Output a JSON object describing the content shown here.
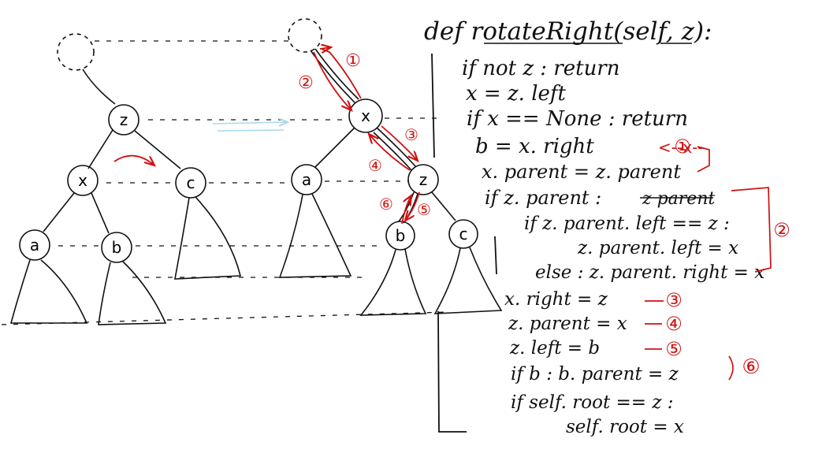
{
  "tree_left": {
    "z": "z",
    "x": "x",
    "c": "c",
    "a": "a",
    "b": "b"
  },
  "tree_right": {
    "x": "x",
    "a": "a",
    "z": "z",
    "b": "b",
    "c": "c"
  },
  "arrow_notes": [
    "①",
    "②",
    "③",
    "④",
    "⑥",
    "⑤"
  ],
  "code": {
    "signature": "def rotateRight(self, z):",
    "lines": [
      "if not z :  return",
      "x = z. left",
      "if x == None : return",
      "b = x. right",
      "x. parent = z. parent",
      "if z. parent :",
      "if z. parent. left == z :",
      "z. parent. left = x",
      "else : z. parent. right = x",
      "x. right = z",
      "z. parent = x",
      "z. left = b",
      "if b :  b. parent = z",
      "if self. root == z :",
      "self. root = x"
    ],
    "struck_text": "z parent",
    "swap_mark": "<--x--",
    "step_marks": [
      "①",
      "②",
      "③",
      "④",
      "⑤",
      "⑥"
    ]
  },
  "colors": {
    "ink": "#111111",
    "annotation": "#d01010",
    "move_arrow": "#a8d8ee"
  }
}
